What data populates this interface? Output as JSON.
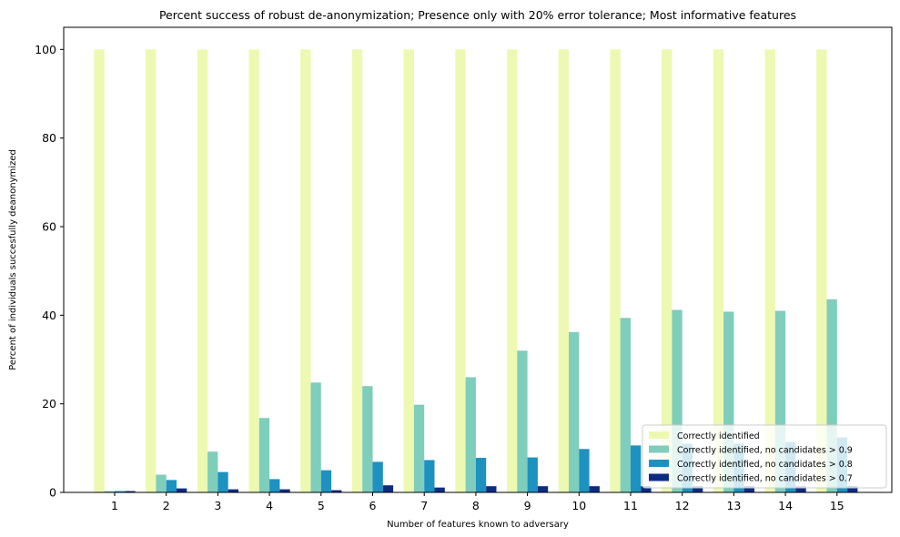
{
  "chart_data": {
    "type": "bar",
    "title": "Percent success of robust de-anonymization; Presence only with 20% error tolerance; Most informative features",
    "xlabel": "Number of features known to adversary",
    "ylabel": "Percent of individuals succesfully deanonymized",
    "categories": [
      "1",
      "2",
      "3",
      "4",
      "5",
      "6",
      "7",
      "8",
      "9",
      "10",
      "11",
      "12",
      "13",
      "14",
      "15"
    ],
    "ylim": [
      0,
      105
    ],
    "yticks": [
      0,
      20,
      40,
      60,
      80,
      100
    ],
    "legend_position": "bottom-right",
    "grid": false,
    "series": [
      {
        "name": "Correctly identified",
        "color": "#edf8b1",
        "values": [
          100,
          100,
          100,
          100,
          100,
          100,
          100,
          100,
          100,
          100,
          100,
          100,
          100,
          100,
          100
        ]
      },
      {
        "name": "Correctly identified, no candidates > 0.9",
        "color": "#7fcdbb",
        "values": [
          0.3,
          4.0,
          9.2,
          16.8,
          24.8,
          24.0,
          19.8,
          26.0,
          32.0,
          36.2,
          39.4,
          41.2,
          40.8,
          41.0,
          43.6
        ]
      },
      {
        "name": "Correctly identified, no candidates > 0.8",
        "color": "#1d91c0",
        "values": [
          0.3,
          2.8,
          4.6,
          3.0,
          5.0,
          6.9,
          7.3,
          7.8,
          7.9,
          9.8,
          10.6,
          11.0,
          11.0,
          11.4,
          12.4
        ]
      },
      {
        "name": "Correctly identified, no candidates > 0.7",
        "color": "#0c2c84",
        "values": [
          0.3,
          0.9,
          0.7,
          0.7,
          0.5,
          1.6,
          1.1,
          1.4,
          1.4,
          1.4,
          1.4,
          1.4,
          1.4,
          1.4,
          1.4
        ]
      }
    ]
  }
}
